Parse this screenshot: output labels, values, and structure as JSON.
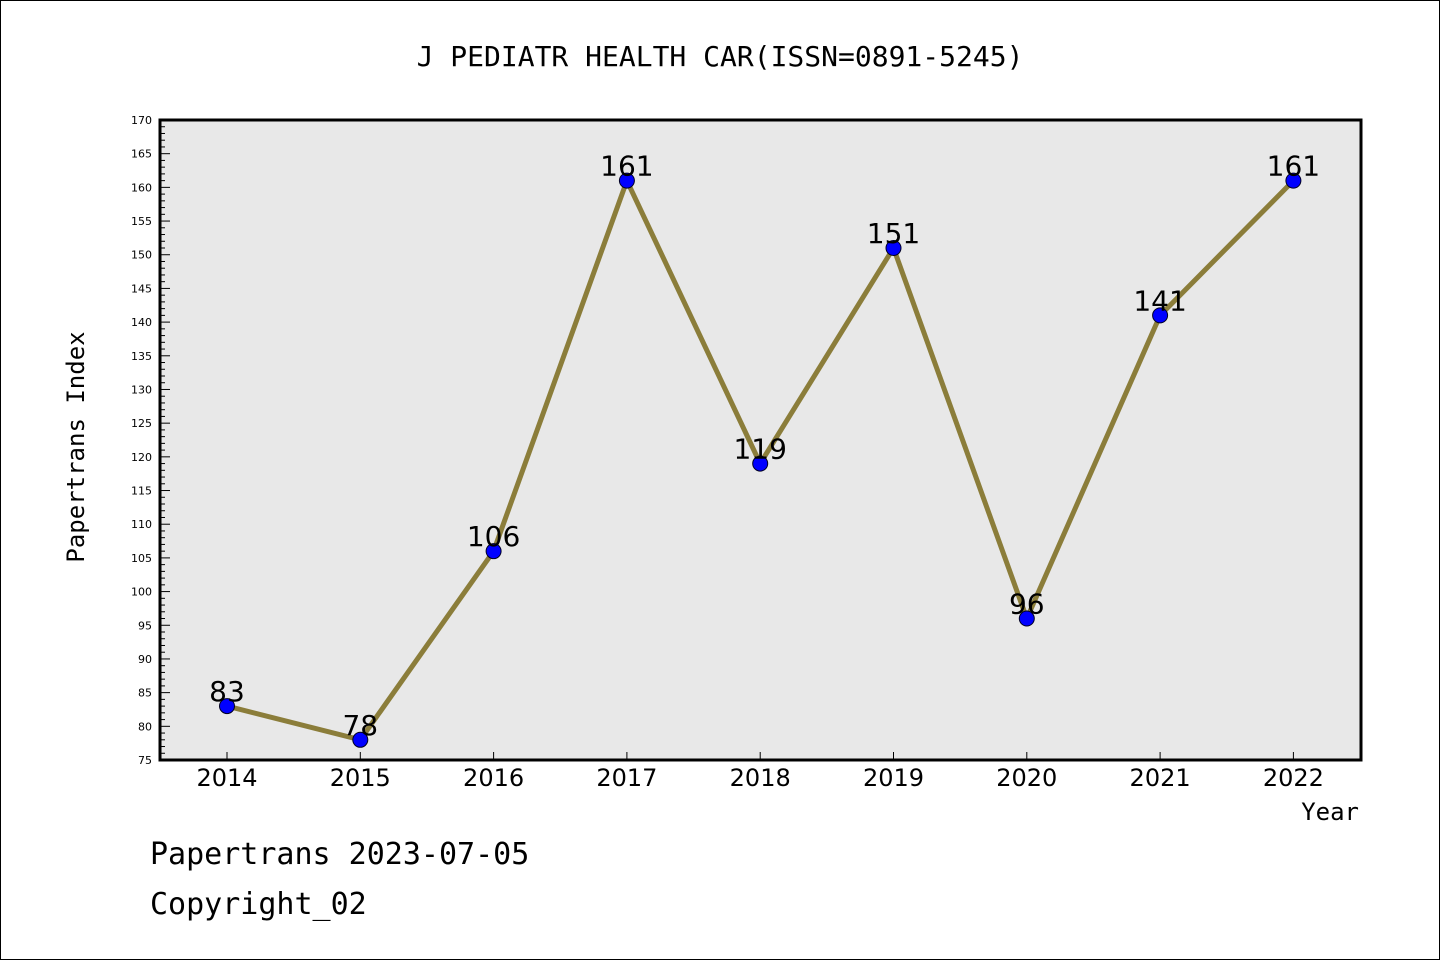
{
  "footer": {
    "line1": "Papertrans 2023-07-05",
    "line2": "Copyright_02"
  },
  "chart_data": {
    "type": "line",
    "title": "J PEDIATR HEALTH CAR(ISSN=0891-5245)",
    "xlabel": "Year",
    "ylabel": "Papertrans Index",
    "x": [
      "2014",
      "2015",
      "2016",
      "2017",
      "2018",
      "2019",
      "2020",
      "2021",
      "2022"
    ],
    "series": [
      {
        "values": [
          83,
          78,
          106,
          161,
          119,
          151,
          96,
          141,
          161
        ]
      }
    ],
    "ylim": [
      75,
      170
    ],
    "ytick_step": 5,
    "grid": false,
    "data_labels": true,
    "colors": {
      "line": "#8b7d3a",
      "marker": "#0000ff",
      "plot_background": "#e8e8e8"
    }
  }
}
